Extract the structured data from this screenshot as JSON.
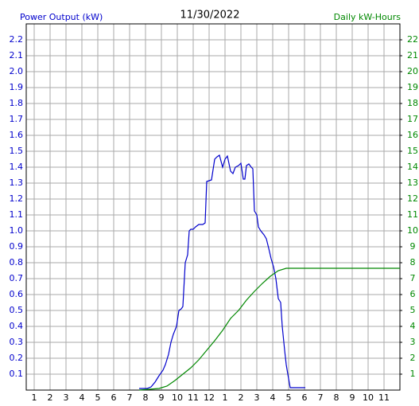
{
  "chart_data": {
    "type": "line",
    "title": "11/30/2022",
    "series": [
      {
        "name": "Power Output (kW)",
        "color": "#0000cc",
        "x": [
          7.6,
          8.1,
          8.35,
          8.6,
          8.85,
          9.1,
          9.25,
          9.45,
          9.6,
          9.75,
          9.95,
          10.1,
          10.25,
          10.35,
          10.5,
          10.65,
          10.75,
          10.85,
          11.0,
          11.15,
          11.35,
          11.6,
          11.75,
          11.85,
          12.15,
          12.35,
          12.5,
          12.65,
          12.85,
          13.0,
          13.15,
          13.35,
          13.5,
          13.65,
          13.85,
          14.0,
          14.15,
          14.25,
          14.35,
          14.5,
          14.65,
          14.75,
          14.85,
          15.0,
          15.1,
          15.25,
          15.45,
          15.6,
          15.75,
          15.9,
          16.05,
          16.2,
          16.35,
          16.5,
          16.6,
          16.75,
          16.85,
          16.95,
          17.1,
          18.05
        ],
        "values": [
          0.01,
          0.01,
          0.02,
          0.05,
          0.09,
          0.125,
          0.16,
          0.225,
          0.3,
          0.35,
          0.4,
          0.5,
          0.51,
          0.525,
          0.8,
          0.85,
          1.0,
          1.01,
          1.01,
          1.025,
          1.04,
          1.04,
          1.05,
          1.31,
          1.32,
          1.45,
          1.465,
          1.475,
          1.4,
          1.45,
          1.47,
          1.375,
          1.36,
          1.4,
          1.41,
          1.425,
          1.325,
          1.325,
          1.41,
          1.42,
          1.4,
          1.39,
          1.125,
          1.1,
          1.025,
          1.0,
          0.975,
          0.95,
          0.89,
          0.825,
          0.775,
          0.7,
          0.575,
          0.55,
          0.4,
          0.25,
          0.16,
          0.1,
          0.015,
          0.015
        ]
      },
      {
        "name": "Daily kW-Hours",
        "color": "#008800",
        "axis": "y2",
        "x": [
          7.6,
          8.85,
          9.35,
          9.85,
          10.35,
          10.85,
          11.35,
          11.85,
          12.35,
          12.85,
          13.35,
          13.85,
          14.35,
          14.85,
          15.35,
          15.85,
          16.35,
          16.85,
          17.85,
          24
        ],
        "values": [
          0,
          0.1,
          0.25,
          0.6,
          1.0,
          1.4,
          1.9,
          2.5,
          3.1,
          3.75,
          4.5,
          5.0,
          5.65,
          6.2,
          6.7,
          7.15,
          7.5,
          7.65,
          7.65,
          7.65
        ]
      }
    ],
    "xlim": [
      0.5,
      24
    ],
    "xticks": [
      1,
      2,
      3,
      4,
      5,
      6,
      7,
      8,
      9,
      10,
      11,
      12,
      {
        "value": 13,
        "label": "1"
      },
      {
        "value": 14,
        "label": "2"
      },
      {
        "value": 15,
        "label": "3"
      },
      {
        "value": 16,
        "label": "4"
      },
      {
        "value": 17,
        "label": "5"
      },
      {
        "value": 18,
        "label": "6"
      },
      {
        "value": 19,
        "label": "7"
      },
      {
        "value": 20,
        "label": "8"
      },
      {
        "value": 21,
        "label": "9"
      },
      {
        "value": 22,
        "label": "10"
      },
      {
        "value": 23,
        "label": "11"
      }
    ],
    "ylim": [
      0,
      2.3
    ],
    "yticks": [
      0.1,
      0.2,
      0.3,
      0.4,
      0.5,
      0.6,
      0.7,
      0.8,
      0.9,
      {
        "value": 1,
        "label": "1.0"
      },
      1.1,
      1.2,
      1.3,
      1.4,
      1.5,
      1.6,
      1.7,
      1.8,
      1.9,
      {
        "value": 2,
        "label": "2.0"
      },
      2.1,
      2.2
    ],
    "y2lim": [
      0,
      23
    ],
    "y2ticks": [
      1,
      2,
      3,
      4,
      5,
      6,
      7,
      8,
      9,
      10,
      11,
      12,
      13,
      14,
      15,
      16,
      17,
      18,
      19,
      20,
      21,
      22
    ],
    "grid": true
  }
}
